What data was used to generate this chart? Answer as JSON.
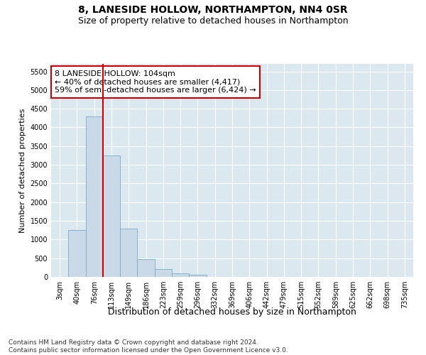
{
  "title": "8, LANESIDE HOLLOW, NORTHAMPTON, NN4 0SR",
  "subtitle": "Size of property relative to detached houses in Northampton",
  "xlabel": "Distribution of detached houses by size in Northampton",
  "ylabel": "Number of detached properties",
  "categories": [
    "3sqm",
    "40sqm",
    "76sqm",
    "113sqm",
    "149sqm",
    "186sqm",
    "223sqm",
    "259sqm",
    "296sqm",
    "332sqm",
    "369sqm",
    "406sqm",
    "442sqm",
    "479sqm",
    "515sqm",
    "552sqm",
    "589sqm",
    "625sqm",
    "662sqm",
    "698sqm",
    "735sqm"
  ],
  "bar_heights": [
    0,
    1250,
    4300,
    3250,
    1300,
    480,
    200,
    100,
    60,
    0,
    0,
    0,
    0,
    0,
    0,
    0,
    0,
    0,
    0,
    0,
    0
  ],
  "bar_color": "#c9d9e8",
  "bar_edge_color": "#7aaac8",
  "red_line_index": 2,
  "red_line_color": "#cc0000",
  "annotation_text": "8 LANESIDE HOLLOW: 104sqm\n← 40% of detached houses are smaller (4,417)\n59% of semi-detached houses are larger (6,424) →",
  "annotation_box_color": "white",
  "annotation_box_edge_color": "#cc0000",
  "ylim": [
    0,
    5700
  ],
  "yticks": [
    0,
    500,
    1000,
    1500,
    2000,
    2500,
    3000,
    3500,
    4000,
    4500,
    5000,
    5500
  ],
  "background_color": "#dce8f0",
  "grid_color": "white",
  "footnote": "Contains HM Land Registry data © Crown copyright and database right 2024.\nContains public sector information licensed under the Open Government Licence v3.0.",
  "title_fontsize": 10,
  "subtitle_fontsize": 9,
  "xlabel_fontsize": 9,
  "ylabel_fontsize": 8,
  "tick_fontsize": 7,
  "annotation_fontsize": 8,
  "footnote_fontsize": 6.5
}
